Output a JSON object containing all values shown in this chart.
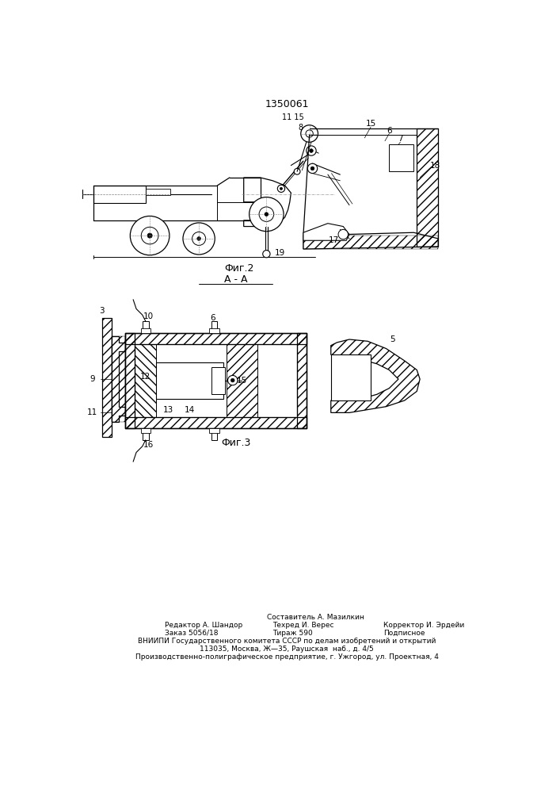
{
  "patent_number": "1350061",
  "fig2_label": "Фиг.2",
  "fig3_label": "Фиг.3",
  "section_label": "А - А",
  "bg_color": "#ffffff",
  "line_color": "#000000",
  "footer_line1_center": "Составитель А. Мазилкин",
  "footer_line2_left": "Редактор А. Шандор",
  "footer_line2_center": "Техред И. Верес",
  "footer_line2_right": "Корректор И. Эрдейи",
  "footer_line3_left": "Заказ 5056/18",
  "footer_line3_center": "Тираж 590",
  "footer_line3_right": "Подписное",
  "footer_line4": "ВНИИПИ Государственного комитета СССР по делам изобретений и открытий",
  "footer_line5": "113035, Москва, Ж—35, Раушская  наб., д. 4/5",
  "footer_line6": "Производственно-полиграфическое предприятие, г. Ужгород, ул. Проектная, 4"
}
